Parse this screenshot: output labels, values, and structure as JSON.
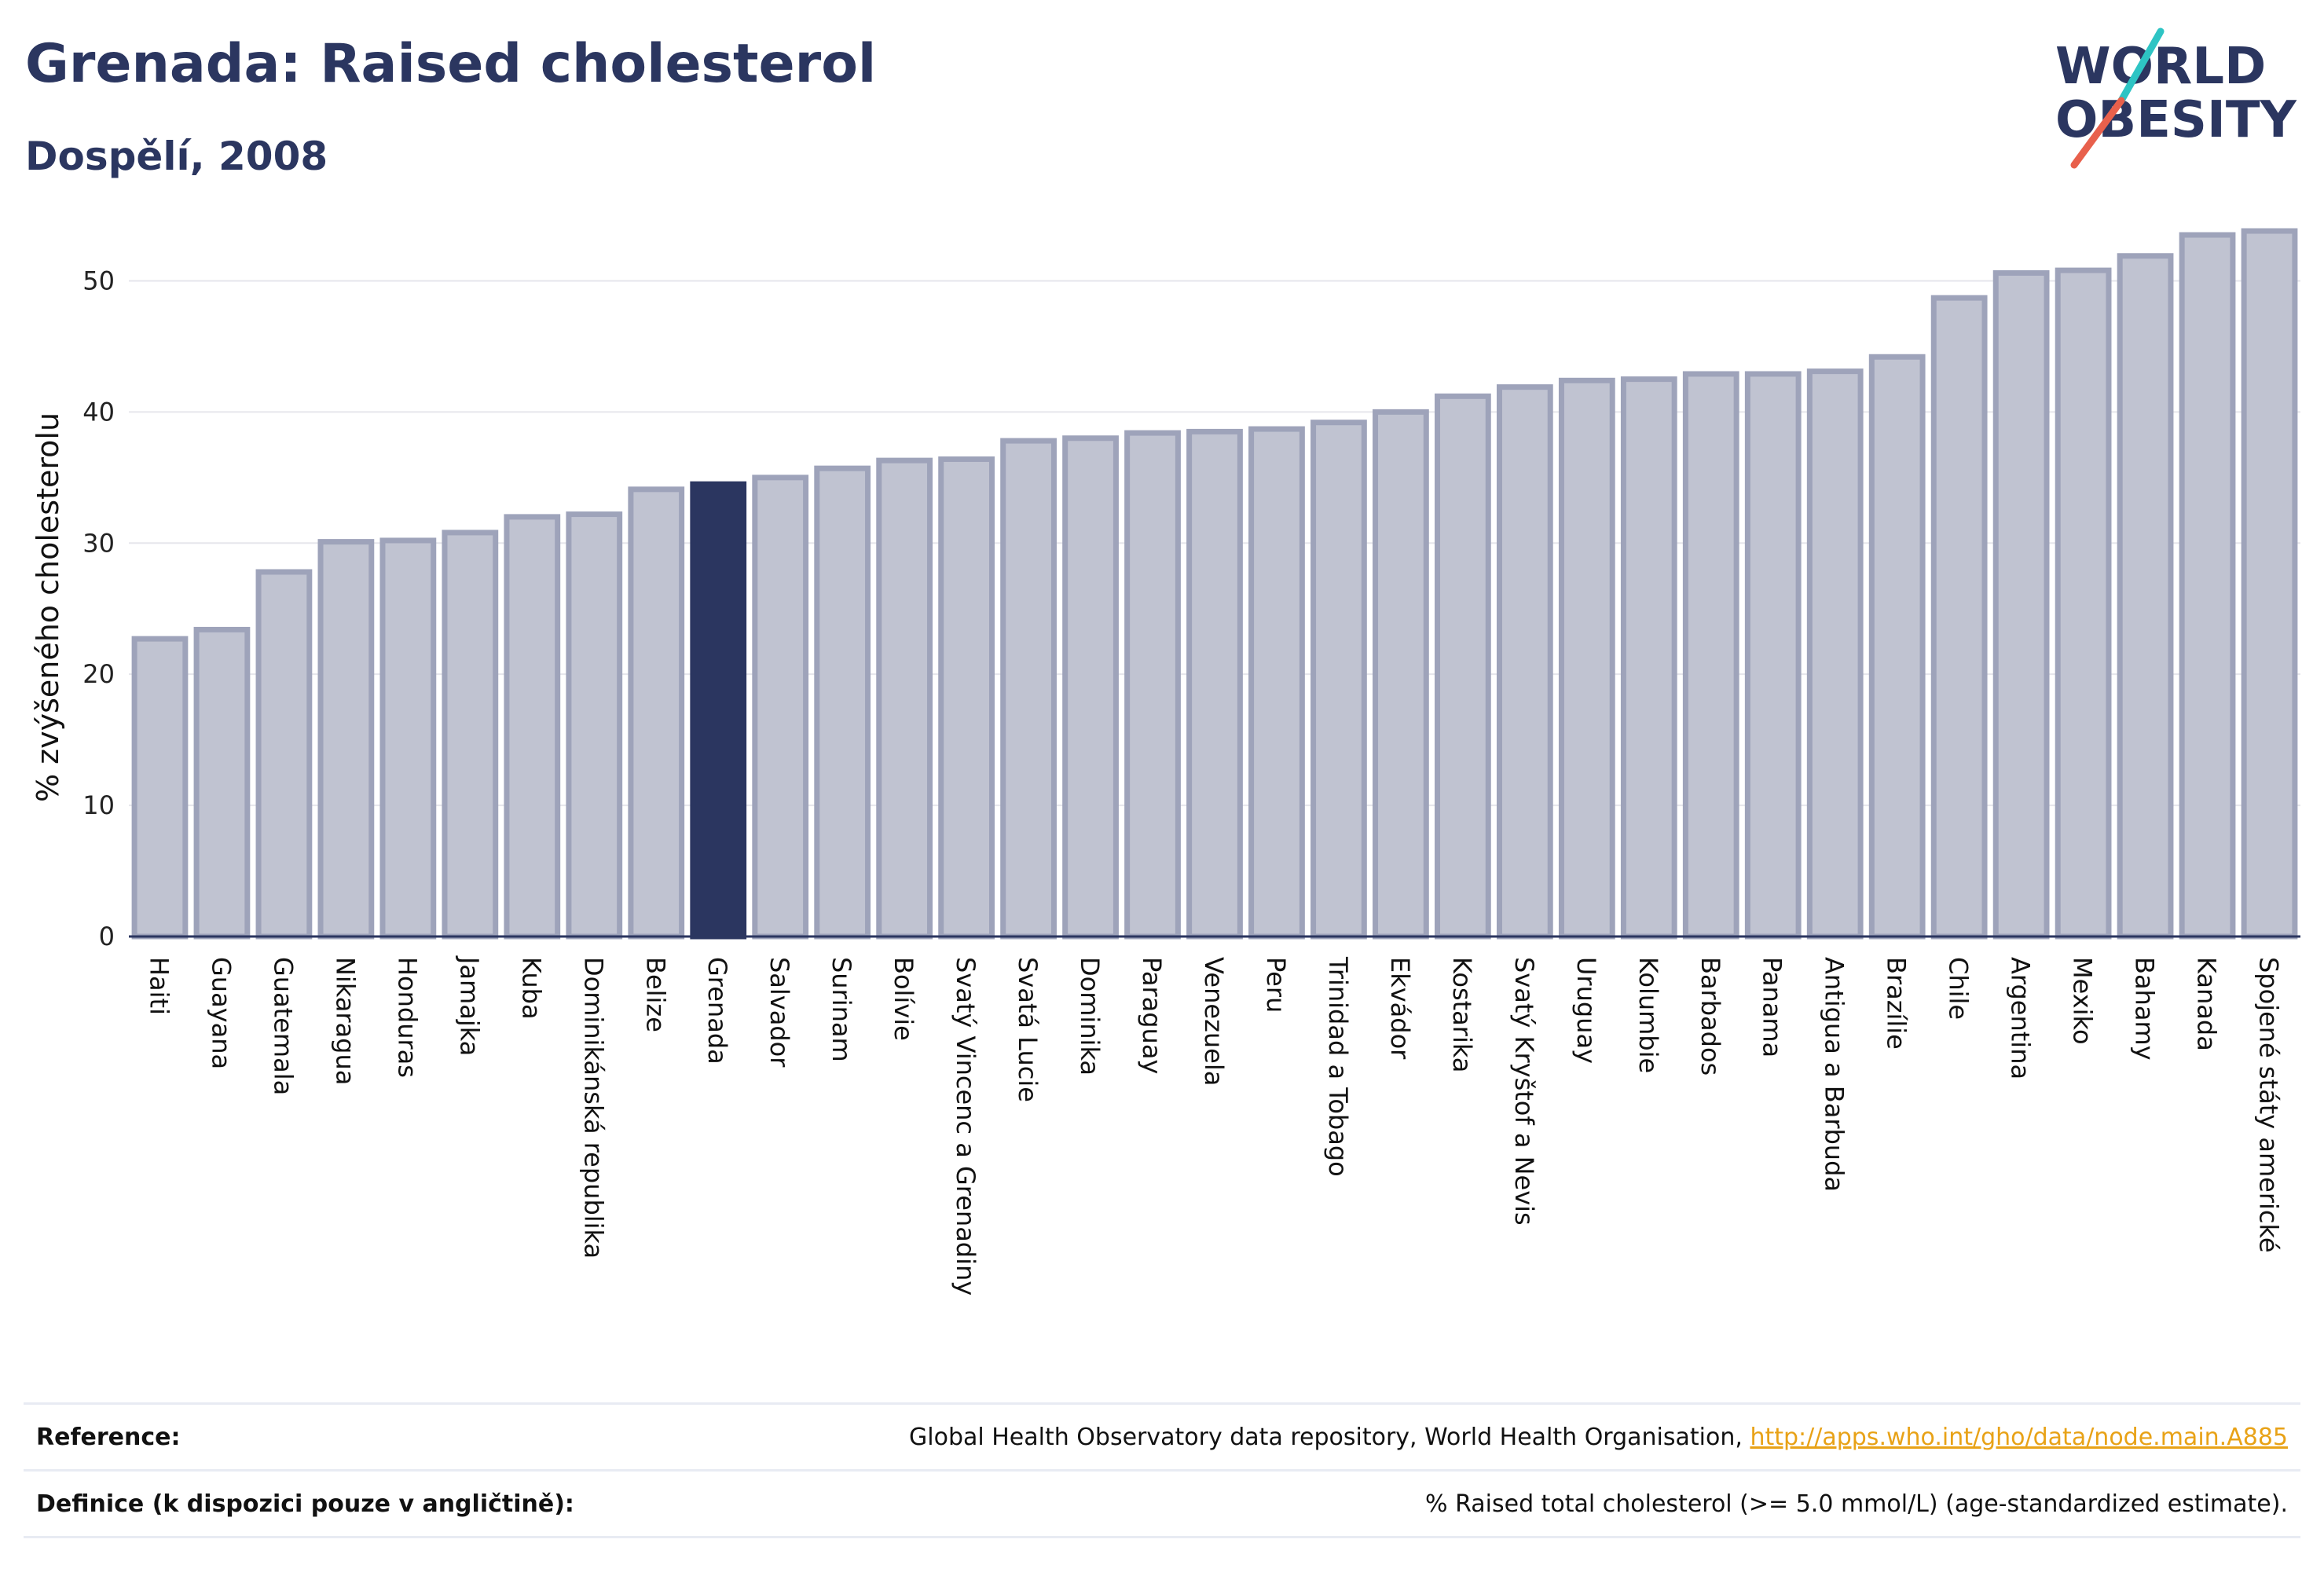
{
  "header": {
    "title": "Grenada: Raised cholesterol",
    "subtitle": "Dospělí, 2008"
  },
  "logo": {
    "line1": "WORLD",
    "line2": "OBESITY",
    "colors": {
      "text": "#2b3660",
      "slash_teal": "#2ec4c4",
      "slash_coral": "#e8604c"
    }
  },
  "colors": {
    "bar_fill": "#c0c3d1",
    "bar_stroke": "#9ea3ba",
    "highlight": "#2b3660",
    "grid": "#e6e6ec",
    "axis": "#2b3660"
  },
  "chart_data": {
    "type": "bar",
    "ylabel": "% zvýšeného cholesterolu",
    "ylim": [
      0,
      55
    ],
    "yticks": [
      0,
      10,
      20,
      30,
      40,
      50
    ],
    "highlight_category": "Grenada",
    "categories": [
      "Haiti",
      "Guayana",
      "Guatemala",
      "Nikaragua",
      "Honduras",
      "Jamajka",
      "Kuba",
      "Dominikánská republika",
      "Belize",
      "Grenada",
      "Salvador",
      "Surinam",
      "Bolívie",
      "Svatý Vincenc a Grenadiny",
      "Svatá Lucie",
      "Dominika",
      "Paraguay",
      "Venezuela",
      "Peru",
      "Trinidad a Tobago",
      "Ekvádor",
      "Kostarika",
      "Svatý Kryštof a Nevis",
      "Uruguay",
      "Kolumbie",
      "Barbados",
      "Panama",
      "Antigua a Barbuda",
      "Brazílie",
      "Chile",
      "Argentina",
      "Mexiko",
      "Bahamy",
      "Kanada",
      "Spojené státy americké"
    ],
    "values": [
      22.7,
      23.4,
      27.8,
      30.1,
      30.2,
      30.8,
      32.0,
      32.2,
      34.1,
      34.5,
      35.0,
      35.7,
      36.3,
      36.4,
      37.8,
      38.0,
      38.4,
      38.5,
      38.7,
      39.2,
      40.0,
      41.2,
      41.9,
      42.4,
      42.5,
      42.9,
      42.9,
      43.1,
      44.2,
      48.7,
      50.6,
      50.8,
      51.9,
      53.5,
      53.8
    ]
  },
  "footer": {
    "reference_label": "Reference:",
    "reference_text": "Global Health Observatory data repository, World Health Organisation, ",
    "reference_link": "http://apps.who.int/gho/data/node.main.A885",
    "definition_label": "Definice (k dispozici pouze v angličtině):",
    "definition_text": "% Raised total cholesterol (>= 5.0 mmol/L) (age-standardized estimate)."
  }
}
